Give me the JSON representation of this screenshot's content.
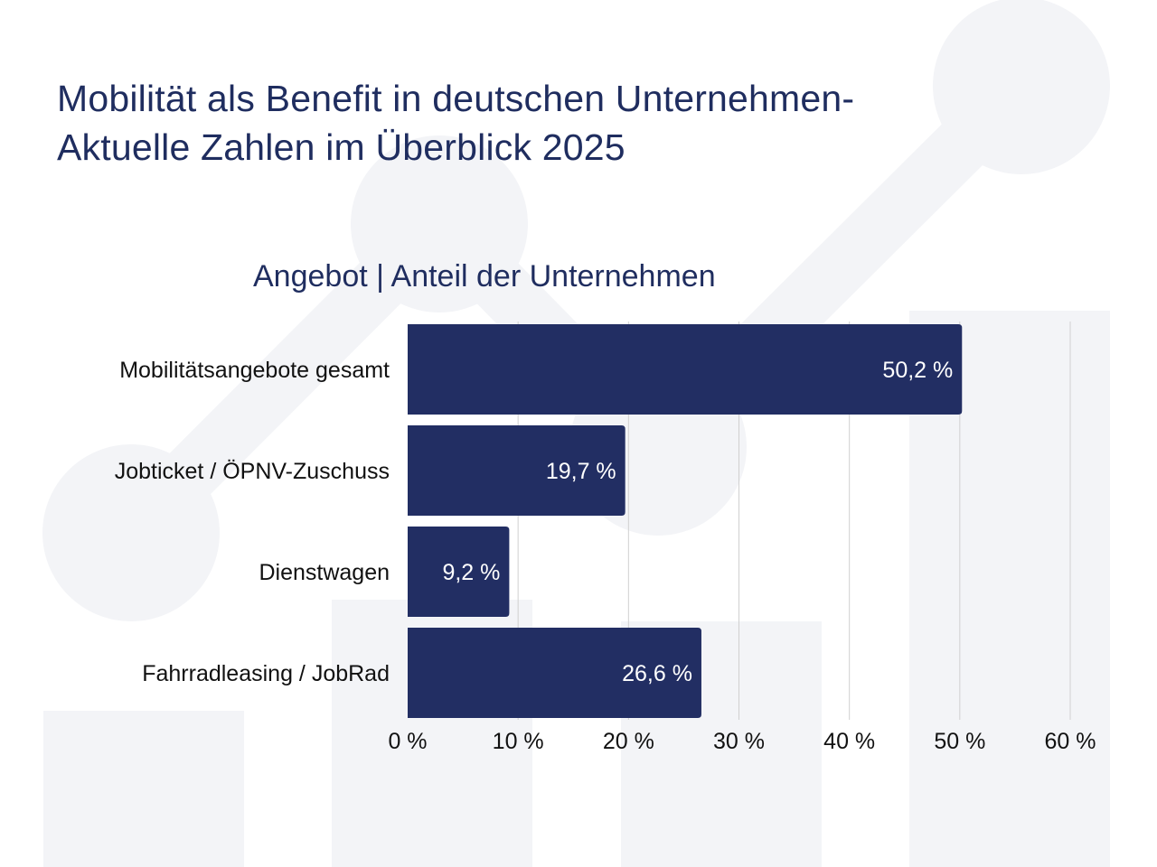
{
  "header": {
    "title_line1": "Mobilität als Benefit in deutschen Unternehmen-",
    "title_line2": "Aktuelle Zahlen im Überblick 2025"
  },
  "colors": {
    "bar": "#222e63",
    "title": "#1f2d5f",
    "background_shapes": "#f3f4f7",
    "gridline": "#d0d0d0"
  },
  "chart_data": {
    "type": "bar",
    "orientation": "horizontal",
    "title": "Angebot | Anteil der Unternehmen",
    "categories": [
      "Mobilitätsangebote gesamt",
      "Jobticket / ÖPNV-Zuschuss",
      "Dienstwagen",
      "Fahrradleasing / JobRad"
    ],
    "values": [
      50.2,
      19.7,
      9.2,
      26.6
    ],
    "value_labels": [
      "50,2 %",
      "19,7 %",
      "9,2 %",
      "26,6 %"
    ],
    "xlim": [
      0,
      60
    ],
    "ticks": [
      0,
      10,
      20,
      30,
      40,
      50,
      60
    ],
    "tick_labels": [
      "0 %",
      "10 %",
      "20 %",
      "30 %",
      "40 %",
      "50 %",
      "60 %"
    ],
    "grid": true,
    "xlabel": "",
    "ylabel": ""
  }
}
